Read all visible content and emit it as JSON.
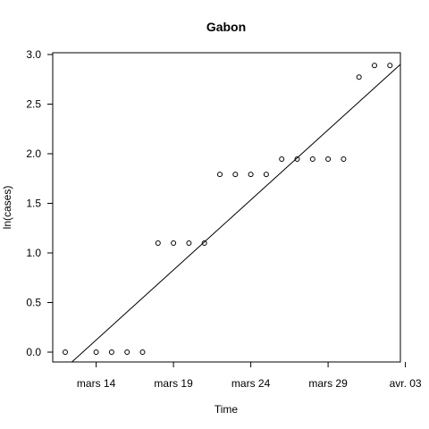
{
  "chart_data": {
    "type": "scatter",
    "title": "Gabon",
    "xlabel": "Time",
    "ylabel": "ln(cases)",
    "grid": false,
    "x_origin": "2020-03-12",
    "xlim": [
      1,
      23.7
    ],
    "ylim": [
      -0.08,
      3.0
    ],
    "x_ticks": [
      {
        "x": 2,
        "label": "mars 14"
      },
      {
        "x": 7,
        "label": "mars 19"
      },
      {
        "x": 12,
        "label": "mars 24"
      },
      {
        "x": 17,
        "label": "mars 29"
      },
      {
        "x": 22,
        "label": "avr. 03"
      }
    ],
    "y_ticks": [
      {
        "y": 0.0,
        "label": "0.0"
      },
      {
        "y": 0.5,
        "label": "0.5"
      },
      {
        "y": 1.0,
        "label": "1.0"
      },
      {
        "y": 1.5,
        "label": "1.5"
      },
      {
        "y": 2.0,
        "label": "2.0"
      },
      {
        "y": 2.5,
        "label": "2.5"
      },
      {
        "y": 3.0,
        "label": "3.0"
      }
    ],
    "points": [
      {
        "x": 0,
        "y": 0.0
      },
      {
        "x": 2,
        "y": 0.0
      },
      {
        "x": 3,
        "y": 0.0
      },
      {
        "x": 4,
        "y": 0.0
      },
      {
        "x": 5,
        "y": 0.0
      },
      {
        "x": 6,
        "y": 1.099
      },
      {
        "x": 7,
        "y": 1.099
      },
      {
        "x": 8,
        "y": 1.099
      },
      {
        "x": 9,
        "y": 1.099
      },
      {
        "x": 10,
        "y": 1.792
      },
      {
        "x": 11,
        "y": 1.792
      },
      {
        "x": 12,
        "y": 1.792
      },
      {
        "x": 13,
        "y": 1.792
      },
      {
        "x": 14,
        "y": 1.946
      },
      {
        "x": 15,
        "y": 1.946
      },
      {
        "x": 16,
        "y": 1.946
      },
      {
        "x": 17,
        "y": 1.946
      },
      {
        "x": 18,
        "y": 1.946
      },
      {
        "x": 19,
        "y": 2.773
      },
      {
        "x": 20,
        "y": 2.89
      },
      {
        "x": 21,
        "y": 2.89
      }
    ],
    "fit_line": {
      "intercept": -0.16,
      "slope": 0.1412
    }
  }
}
